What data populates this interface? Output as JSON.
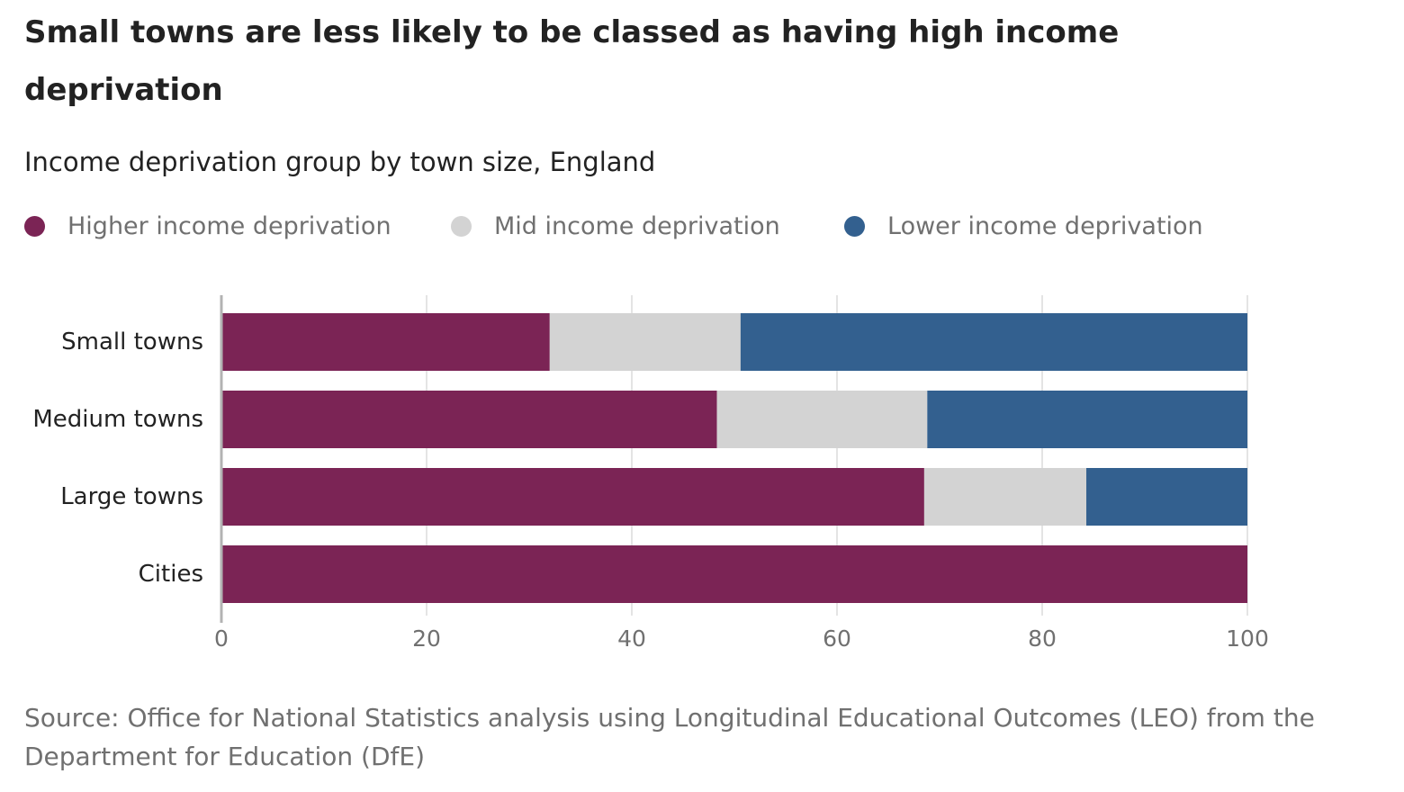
{
  "title": "Small towns are less likely to be classed as having high income deprivation",
  "subtitle": "Income deprivation group by town size, England",
  "source": "Source: Office for National Statistics analysis using Longitudinal Educational Outcomes (LEO) from the Department for Education (DfE)",
  "legend": [
    {
      "label": "Higher income deprivation",
      "color": "#7b2455"
    },
    {
      "label": "Mid income deprivation",
      "color": "#d3d3d3"
    },
    {
      "label": "Lower income deprivation",
      "color": "#33608f"
    }
  ],
  "chart_data": {
    "type": "bar",
    "orientation": "horizontal",
    "stacked": true,
    "categories": [
      "Small towns",
      "Medium towns",
      "Large towns",
      "Cities"
    ],
    "series": [
      {
        "name": "Higher income deprivation",
        "color": "#7b2455",
        "values": [
          32,
          48.3,
          68.5,
          100
        ]
      },
      {
        "name": "Mid income deprivation",
        "color": "#d3d3d3",
        "values": [
          18.6,
          20.5,
          15.8,
          0
        ]
      },
      {
        "name": "Lower income deprivation",
        "color": "#33608f",
        "values": [
          49.4,
          31.2,
          15.7,
          0
        ]
      }
    ],
    "xlim": [
      0,
      100
    ],
    "xticks": [
      0,
      20,
      40,
      60,
      80,
      100
    ],
    "grid": true,
    "legend_position": "top"
  }
}
